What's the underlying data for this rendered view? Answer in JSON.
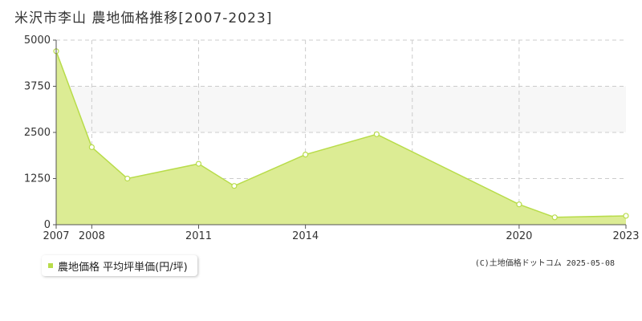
{
  "title": "米沢市李山  農地価格推移[2007-2023]",
  "legend": {
    "label": "農地価格 平均坪単価(円/坪)"
  },
  "copyright": "(C)土地価格ドットコム 2025-05-08",
  "colors": {
    "area_fill": "#dcec94",
    "line": "#b8dc4a",
    "marker_stroke": "#b8dc4a",
    "grid": "#cccccc",
    "band": "#f7f7f7",
    "legend_swatch": "#b8dc4a"
  },
  "chart_data": {
    "type": "area",
    "title": "米沢市李山  農地価格推移[2007-2023]",
    "xlabel": "",
    "ylabel": "",
    "xlim": [
      2007,
      2023
    ],
    "ylim": [
      0,
      5000
    ],
    "x_ticks": [
      2007,
      2008,
      2011,
      2014,
      2020,
      2023
    ],
    "x_grid": [
      2008,
      2011,
      2014,
      2017,
      2020
    ],
    "y_ticks": [
      0,
      1250,
      2500,
      3750,
      5000
    ],
    "grid": true,
    "legend_position": "bottom-left",
    "series": [
      {
        "name": "農地価格 平均坪単価(円/坪)",
        "x": [
          2007,
          2008,
          2009,
          2011,
          2012,
          2014,
          2016,
          2020,
          2021,
          2023
        ],
        "y": [
          4700,
          2100,
          1250,
          1650,
          1050,
          1900,
          2450,
          550,
          200,
          240
        ]
      }
    ]
  }
}
